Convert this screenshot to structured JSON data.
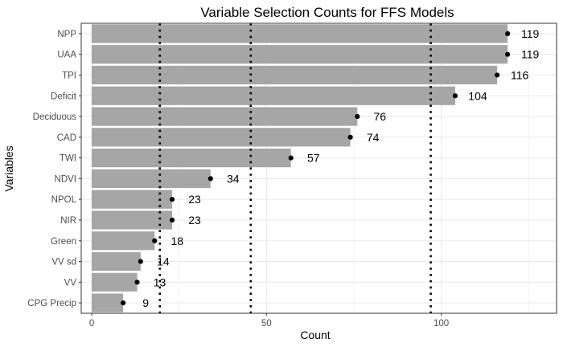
{
  "chart_data": {
    "type": "bar",
    "orientation": "horizontal",
    "title": "Variable Selection Counts for FFS Models",
    "xlabel": "Count",
    "ylabel": "Variables",
    "xlim": [
      -3,
      133
    ],
    "x_ticks": [
      0,
      50,
      100
    ],
    "grid": true,
    "categories": [
      "NPP",
      "UAA",
      "TPI",
      "Deficit",
      "Deciduous",
      "CAD",
      "TWI",
      "NDVI",
      "NPOL",
      "NIR",
      "Green",
      "VV sd",
      "VV",
      "CPG Precip"
    ],
    "values": [
      119,
      119,
      116,
      104,
      76,
      74,
      57,
      34,
      23,
      23,
      18,
      14,
      13,
      9
    ],
    "data_labels": [
      "119",
      "119",
      "116",
      "104",
      "76",
      "74",
      "57",
      "34",
      "23",
      "23",
      "18",
      "14",
      "13",
      "9"
    ],
    "reference_lines": [
      19.5,
      45.5,
      97
    ],
    "colors": {
      "bar": "#a6a6a6",
      "point": "#000000",
      "grid": "#ebebeb",
      "panel_border": "#333333"
    }
  }
}
